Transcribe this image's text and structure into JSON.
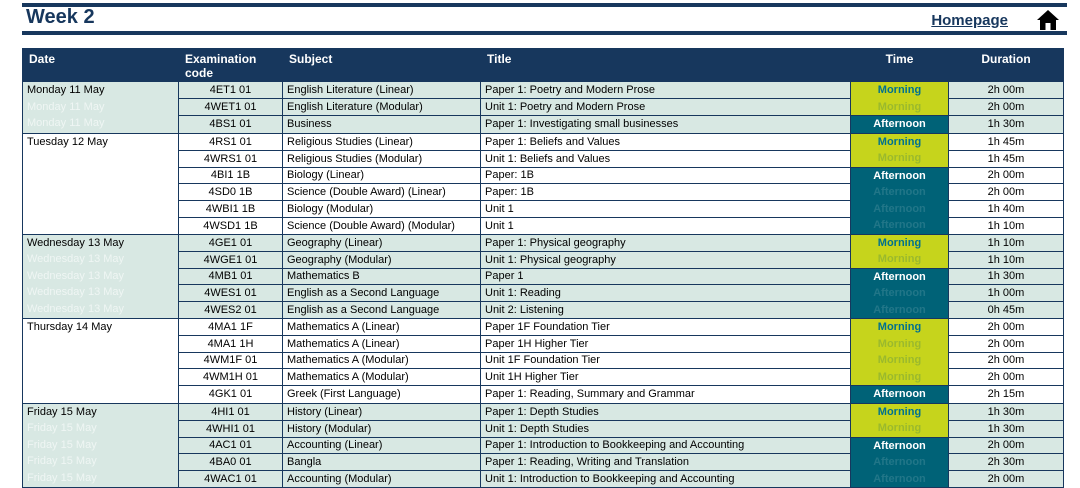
{
  "header": {
    "title": "Week 2",
    "homepage_label": "Homepage"
  },
  "colors": {
    "navy": "#17375d",
    "row_tint": "#d8e8e3",
    "morning_bg": "#c6d41c",
    "morning_text": "#00718f",
    "afternoon_bg": "#006277",
    "afternoon_text": "#ffffff"
  },
  "table": {
    "columns": [
      "Date",
      "Examination code",
      "Subject",
      "Title",
      "Time",
      "Duration"
    ],
    "days": [
      {
        "date": "Monday 11 May",
        "shaded": true,
        "sessions": [
          {
            "label": "Morning",
            "span": 2
          },
          {
            "label": "Afternoon",
            "span": 1
          }
        ],
        "rows": [
          {
            "code": "4ET1 01",
            "subject": "English Literature (Linear)",
            "title": "Paper 1: Poetry and Modern Prose",
            "duration": "2h 00m"
          },
          {
            "code": "4WET1 01",
            "subject": "English Literature (Modular)",
            "title": "Unit 1: Poetry and Modern Prose",
            "duration": "2h 00m"
          },
          {
            "code": "4BS1 01",
            "subject": "Business",
            "title": "Paper 1: Investigating small businesses",
            "duration": "1h 30m"
          }
        ]
      },
      {
        "date": "Tuesday 12 May",
        "shaded": false,
        "sessions": [
          {
            "label": "Morning",
            "span": 2
          },
          {
            "label": "Afternoon",
            "span": 4
          }
        ],
        "rows": [
          {
            "code": "4RS1 01",
            "subject": "Religious Studies (Linear)",
            "title": "Paper 1: Beliefs and Values",
            "duration": "1h 45m"
          },
          {
            "code": "4WRS1 01",
            "subject": "Religious Studies (Modular)",
            "title": "Unit 1: Beliefs and Values",
            "duration": "1h 45m"
          },
          {
            "code": "4BI1 1B",
            "subject": "Biology (Linear)",
            "title": "Paper: 1B",
            "duration": "2h 00m"
          },
          {
            "code": "4SD0 1B",
            "subject": "Science (Double Award) (Linear)",
            "title": "Paper: 1B",
            "duration": "2h 00m"
          },
          {
            "code": "4WBI1 1B",
            "subject": "Biology (Modular)",
            "title": "Unit 1",
            "duration": "1h 40m"
          },
          {
            "code": "4WSD1 1B",
            "subject": "Science (Double Award) (Modular)",
            "title": "Unit 1",
            "duration": "1h 10m"
          }
        ]
      },
      {
        "date": "Wednesday 13 May",
        "shaded": true,
        "sessions": [
          {
            "label": "Morning",
            "span": 2
          },
          {
            "label": "Afternoon",
            "span": 3
          }
        ],
        "rows": [
          {
            "code": "4GE1 01",
            "subject": "Geography (Linear)",
            "title": "Paper 1: Physical geography",
            "duration": "1h 10m"
          },
          {
            "code": "4WGE1 01",
            "subject": "Geography (Modular)",
            "title": "Unit 1: Physical geography",
            "duration": "1h 10m"
          },
          {
            "code": "4MB1 01",
            "subject": "Mathematics B",
            "title": "Paper 1",
            "duration": "1h 30m"
          },
          {
            "code": "4WES1 01",
            "subject": "English as a Second Language",
            "title": "Unit 1: Reading",
            "duration": "1h 00m"
          },
          {
            "code": "4WES2 01",
            "subject": "English as a Second Language",
            "title": "Unit 2: Listening",
            "duration": "0h 45m"
          }
        ]
      },
      {
        "date": "Thursday 14 May",
        "shaded": false,
        "sessions": [
          {
            "label": "Morning",
            "span": 4
          },
          {
            "label": "Afternoon",
            "span": 1
          }
        ],
        "rows": [
          {
            "code": "4MA1 1F",
            "subject": "Mathematics A (Linear)",
            "title": "Paper 1F Foundation Tier",
            "duration": "2h 00m"
          },
          {
            "code": "4MA1 1H",
            "subject": "Mathematics A (Linear)",
            "title": "Paper 1H Higher Tier",
            "duration": "2h 00m"
          },
          {
            "code": "4WM1F 01",
            "subject": "Mathematics A (Modular)",
            "title": "Unit 1F Foundation Tier",
            "duration": "2h 00m"
          },
          {
            "code": "4WM1H 01",
            "subject": "Mathematics A (Modular)",
            "title": "Unit 1H Higher Tier",
            "duration": "2h 00m"
          },
          {
            "code": "4GK1 01",
            "subject": "Greek (First Language)",
            "title": "Paper 1: Reading, Summary and Grammar",
            "duration": "2h 15m"
          }
        ]
      },
      {
        "date": "Friday 15 May",
        "shaded": true,
        "sessions": [
          {
            "label": "Morning",
            "span": 2
          },
          {
            "label": "Afternoon",
            "span": 3
          }
        ],
        "rows": [
          {
            "code": "4HI1 01",
            "subject": "History (Linear)",
            "title": "Paper 1: Depth Studies",
            "duration": "1h 30m"
          },
          {
            "code": "4WHI1 01",
            "subject": "History (Modular)",
            "title": "Unit 1: Depth Studies",
            "duration": "1h 30m"
          },
          {
            "code": "4AC1 01",
            "subject": "Accounting (Linear)",
            "title": "Paper 1: Introduction to Bookkeeping and Accounting",
            "duration": "2h 00m"
          },
          {
            "code": "4BA0 01",
            "subject": "Bangla",
            "title": "Paper 1: Reading, Writing and Translation",
            "duration": "2h 30m"
          },
          {
            "code": "4WAC1 01",
            "subject": "Accounting (Modular)",
            "title": "Unit 1: Introduction to Bookkeeping and Accounting",
            "duration": "2h 00m"
          }
        ]
      }
    ]
  }
}
